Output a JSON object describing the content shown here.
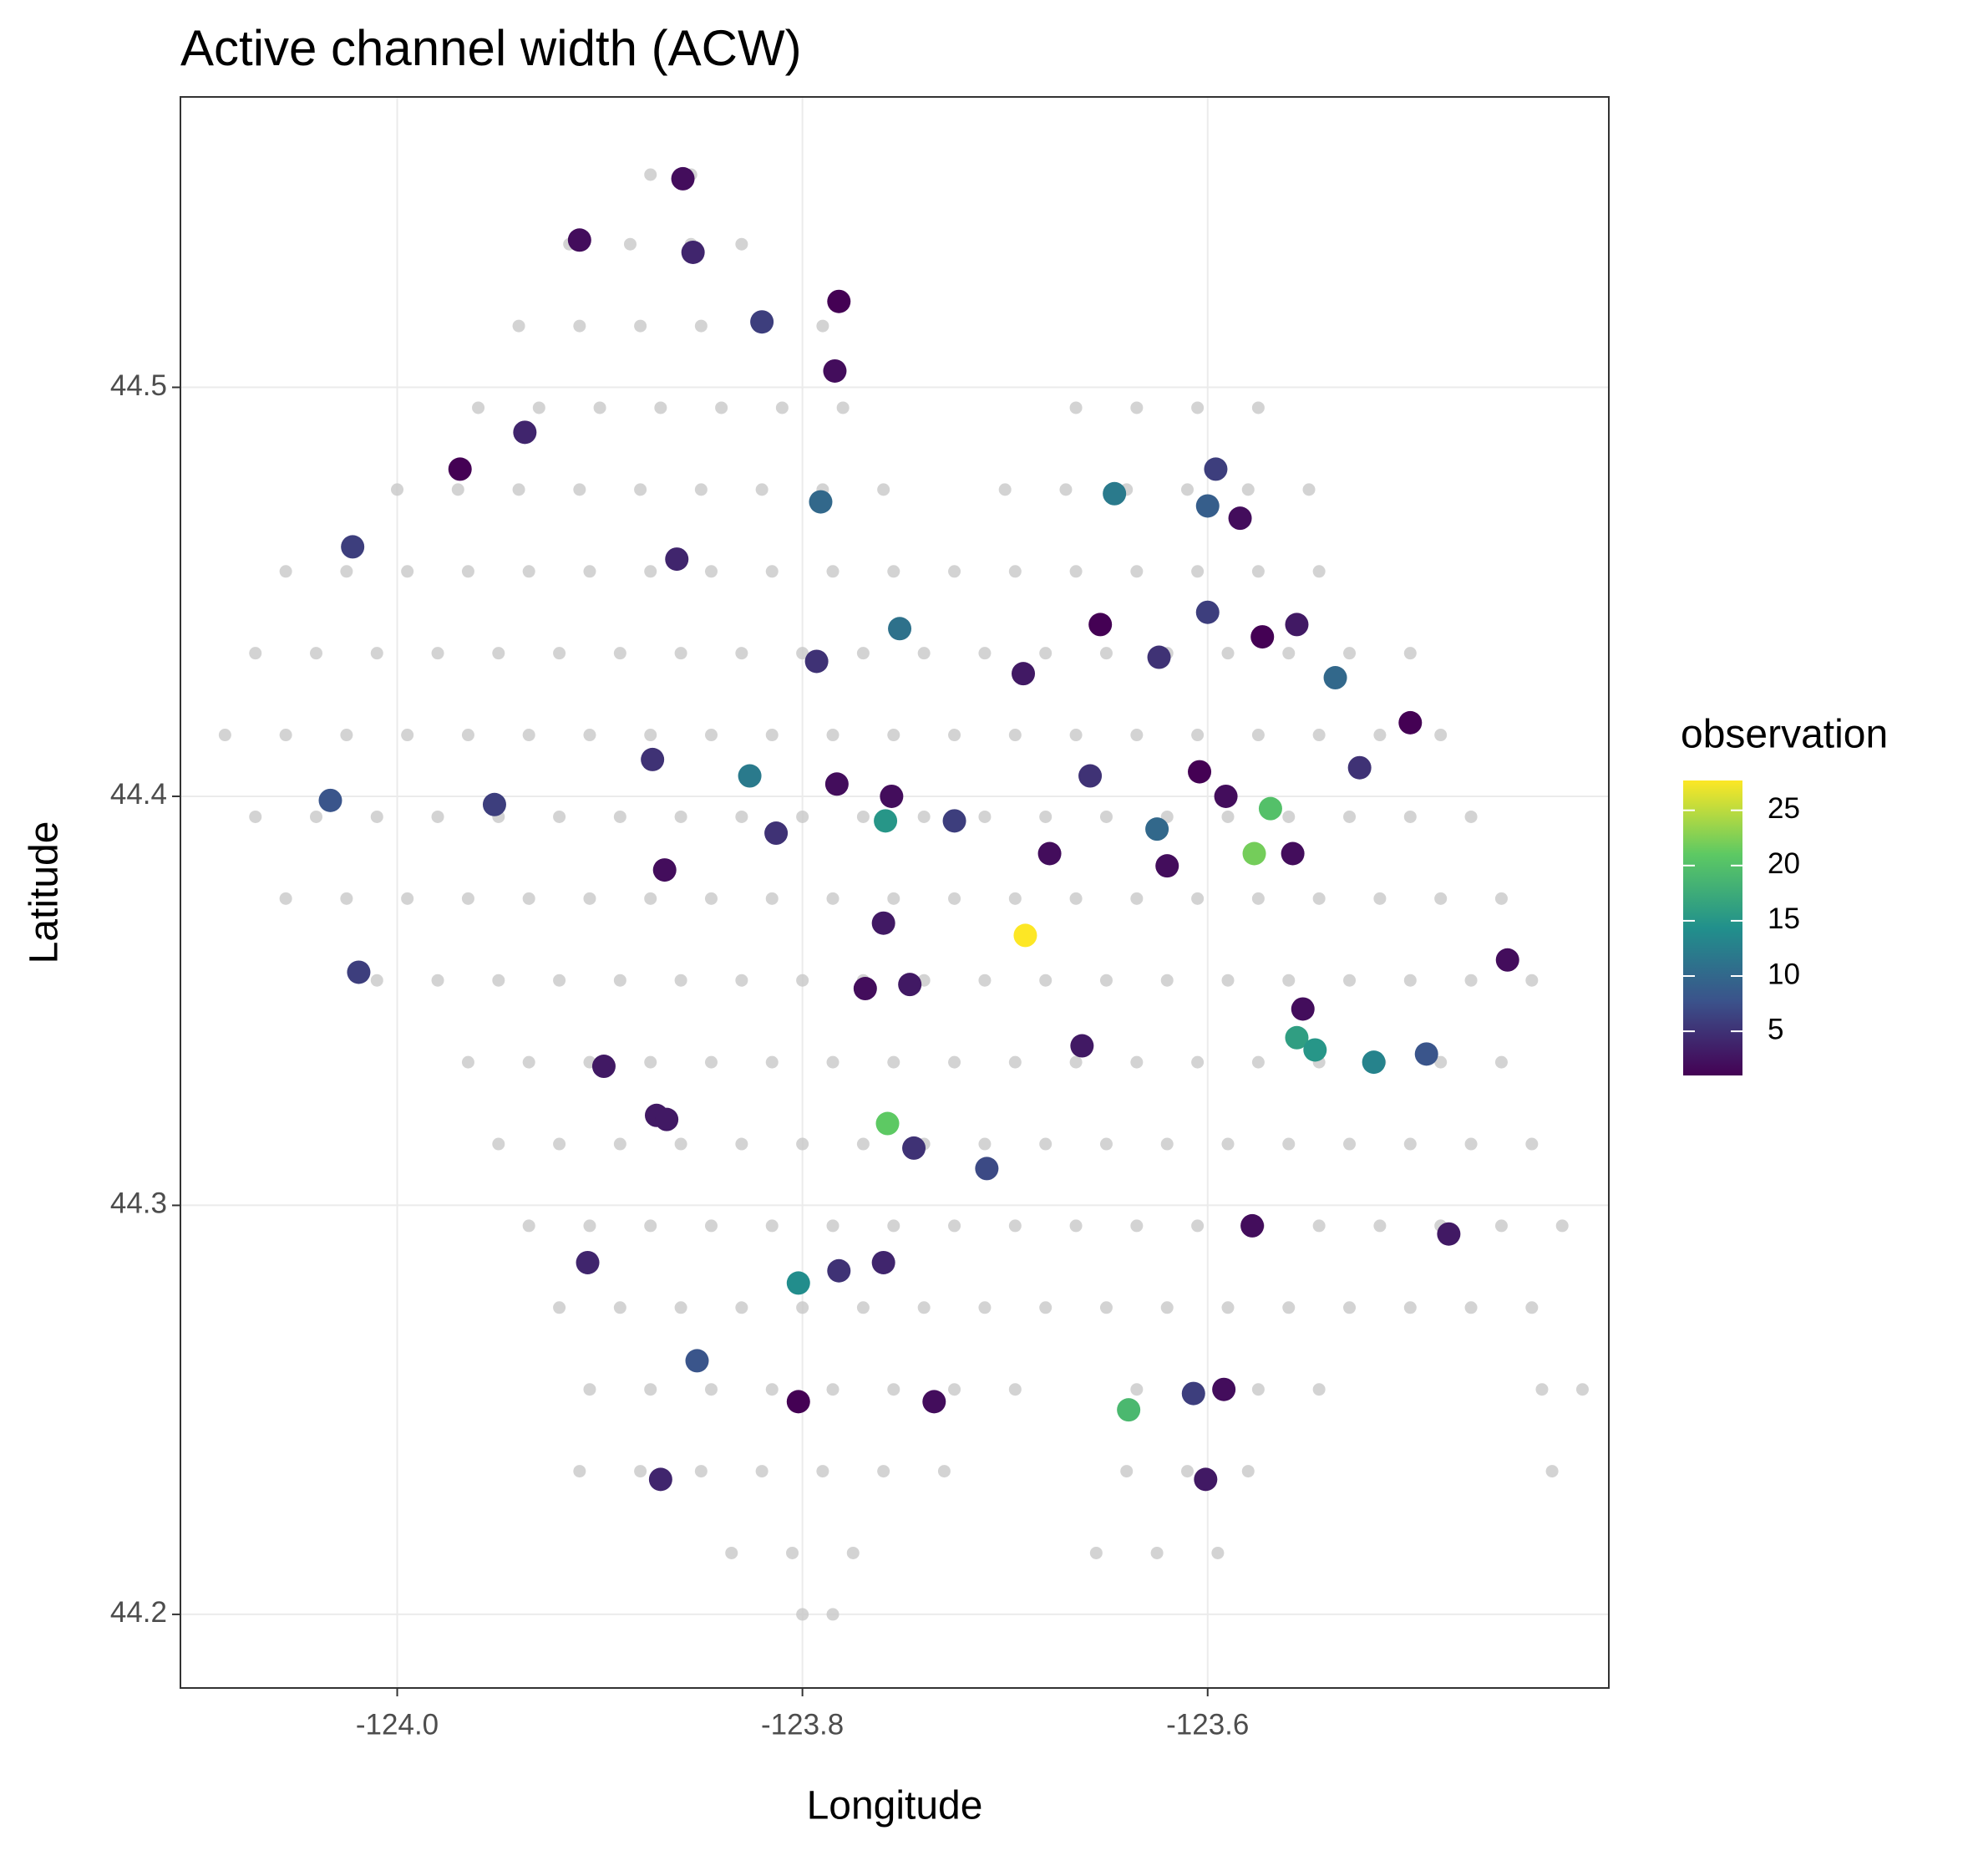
{
  "chart_data": {
    "type": "scatter",
    "title": "Active channel width (ACW)",
    "x_label": "Longitude",
    "y_label": "Latitude",
    "xlim": [
      -124.107,
      -123.402
    ],
    "ylim": [
      44.182,
      44.571
    ],
    "xticks": [
      {
        "value": -124,
        "label": "-124.0"
      },
      -123.8,
      -123.6
    ],
    "yticks": [
      44.2,
      44.3,
      44.4,
      44.5
    ],
    "grid": true,
    "background": {
      "color": "#c8c8c8",
      "x": [
        -123.875,
        -123.855,
        -123.915,
        -123.885,
        -123.855,
        -123.83,
        -123.94,
        -123.91,
        -123.88,
        -123.85,
        -123.82,
        -123.79,
        -123.96,
        -123.93,
        -123.9,
        -123.87,
        -123.84,
        -123.81,
        -123.78,
        -123.665,
        -123.635,
        -123.605,
        -123.575,
        -124.0,
        -123.97,
        -123.94,
        -123.91,
        -123.88,
        -123.85,
        -123.82,
        -123.79,
        -123.76,
        -123.7,
        -123.67,
        -123.64,
        -123.61,
        -123.58,
        -123.55,
        -124.055,
        -124.025,
        -123.995,
        -123.965,
        -123.935,
        -123.905,
        -123.875,
        -123.845,
        -123.815,
        -123.785,
        -123.755,
        -123.725,
        -123.695,
        -123.665,
        -123.635,
        -123.605,
        -123.575,
        -123.545,
        -124.07,
        -124.04,
        -124.01,
        -123.98,
        -123.95,
        -123.92,
        -123.89,
        -123.86,
        -123.83,
        -123.8,
        -123.77,
        -123.74,
        -123.71,
        -123.68,
        -123.65,
        -123.62,
        -123.59,
        -123.56,
        -123.53,
        -123.5,
        -124.085,
        -124.055,
        -124.025,
        -123.995,
        -123.965,
        -123.935,
        -123.905,
        -123.875,
        -123.845,
        -123.815,
        -123.785,
        -123.755,
        -123.725,
        -123.695,
        -123.665,
        -123.635,
        -123.605,
        -123.575,
        -123.545,
        -123.515,
        -123.485,
        -124.07,
        -124.04,
        -124.01,
        -123.98,
        -123.95,
        -123.92,
        -123.89,
        -123.86,
        -123.83,
        -123.8,
        -123.77,
        -123.74,
        -123.71,
        -123.68,
        -123.65,
        -123.62,
        -123.59,
        -123.56,
        -123.53,
        -123.5,
        -123.47,
        -124.055,
        -124.025,
        -123.995,
        -123.965,
        -123.935,
        -123.905,
        -123.875,
        -123.845,
        -123.815,
        -123.785,
        -123.755,
        -123.725,
        -123.695,
        -123.665,
        -123.635,
        -123.605,
        -123.575,
        -123.545,
        -123.515,
        -123.485,
        -123.455,
        -124.01,
        -123.98,
        -123.95,
        -123.92,
        -123.89,
        -123.86,
        -123.83,
        -123.8,
        -123.77,
        -123.74,
        -123.71,
        -123.68,
        -123.65,
        -123.62,
        -123.59,
        -123.56,
        -123.53,
        -123.5,
        -123.47,
        -123.44,
        -123.965,
        -123.935,
        -123.905,
        -123.875,
        -123.845,
        -123.815,
        -123.785,
        -123.755,
        -123.725,
        -123.695,
        -123.665,
        -123.635,
        -123.605,
        -123.575,
        -123.545,
        -123.515,
        -123.485,
        -123.455,
        -123.95,
        -123.92,
        -123.89,
        -123.86,
        -123.83,
        -123.8,
        -123.77,
        -123.74,
        -123.71,
        -123.68,
        -123.65,
        -123.62,
        -123.59,
        -123.56,
        -123.53,
        -123.5,
        -123.47,
        -123.44,
        -123.935,
        -123.905,
        -123.875,
        -123.845,
        -123.815,
        -123.785,
        -123.755,
        -123.725,
        -123.695,
        -123.665,
        -123.635,
        -123.605,
        -123.575,
        -123.545,
        -123.515,
        -123.485,
        -123.455,
        -123.425,
        -123.92,
        -123.89,
        -123.86,
        -123.83,
        -123.8,
        -123.77,
        -123.74,
        -123.71,
        -123.68,
        -123.65,
        -123.62,
        -123.59,
        -123.56,
        -123.53,
        -123.5,
        -123.47,
        -123.44,
        -123.905,
        -123.875,
        -123.845,
        -123.815,
        -123.785,
        -123.755,
        -123.725,
        -123.695,
        -123.635,
        -123.605,
        -123.575,
        -123.545,
        -123.435,
        -123.415,
        -123.91,
        -123.88,
        -123.85,
        -123.82,
        -123.79,
        -123.76,
        -123.73,
        -123.64,
        -123.61,
        -123.58,
        -123.43,
        -123.835,
        -123.805,
        -123.775,
        -123.655,
        -123.625,
        -123.595,
        -123.8,
        -123.785
      ],
      "y": [
        44.552,
        44.552,
        44.535,
        44.535,
        44.535,
        44.535,
        44.515,
        44.515,
        44.515,
        44.515,
        44.515,
        44.515,
        44.495,
        44.495,
        44.495,
        44.495,
        44.495,
        44.495,
        44.495,
        44.495,
        44.495,
        44.495,
        44.495,
        44.475,
        44.475,
        44.475,
        44.475,
        44.475,
        44.475,
        44.475,
        44.475,
        44.475,
        44.475,
        44.475,
        44.475,
        44.475,
        44.475,
        44.475,
        44.455,
        44.455,
        44.455,
        44.455,
        44.455,
        44.455,
        44.455,
        44.455,
        44.455,
        44.455,
        44.455,
        44.455,
        44.455,
        44.455,
        44.455,
        44.455,
        44.455,
        44.455,
        44.435,
        44.435,
        44.435,
        44.435,
        44.435,
        44.435,
        44.435,
        44.435,
        44.435,
        44.435,
        44.435,
        44.435,
        44.435,
        44.435,
        44.435,
        44.435,
        44.435,
        44.435,
        44.435,
        44.435,
        44.415,
        44.415,
        44.415,
        44.415,
        44.415,
        44.415,
        44.415,
        44.415,
        44.415,
        44.415,
        44.415,
        44.415,
        44.415,
        44.415,
        44.415,
        44.415,
        44.415,
        44.415,
        44.415,
        44.415,
        44.415,
        44.395,
        44.395,
        44.395,
        44.395,
        44.395,
        44.395,
        44.395,
        44.395,
        44.395,
        44.395,
        44.395,
        44.395,
        44.395,
        44.395,
        44.395,
        44.395,
        44.395,
        44.395,
        44.395,
        44.395,
        44.395,
        44.375,
        44.375,
        44.375,
        44.375,
        44.375,
        44.375,
        44.375,
        44.375,
        44.375,
        44.375,
        44.375,
        44.375,
        44.375,
        44.375,
        44.375,
        44.375,
        44.375,
        44.375,
        44.375,
        44.375,
        44.375,
        44.355,
        44.355,
        44.355,
        44.355,
        44.355,
        44.355,
        44.355,
        44.355,
        44.355,
        44.355,
        44.355,
        44.355,
        44.355,
        44.355,
        44.355,
        44.355,
        44.355,
        44.355,
        44.355,
        44.355,
        44.335,
        44.335,
        44.335,
        44.335,
        44.335,
        44.335,
        44.335,
        44.335,
        44.335,
        44.335,
        44.335,
        44.335,
        44.335,
        44.335,
        44.335,
        44.335,
        44.335,
        44.335,
        44.315,
        44.315,
        44.315,
        44.315,
        44.315,
        44.315,
        44.315,
        44.315,
        44.315,
        44.315,
        44.315,
        44.315,
        44.315,
        44.315,
        44.315,
        44.315,
        44.315,
        44.315,
        44.295,
        44.295,
        44.295,
        44.295,
        44.295,
        44.295,
        44.295,
        44.295,
        44.295,
        44.295,
        44.295,
        44.295,
        44.295,
        44.295,
        44.295,
        44.295,
        44.295,
        44.295,
        44.275,
        44.275,
        44.275,
        44.275,
        44.275,
        44.275,
        44.275,
        44.275,
        44.275,
        44.275,
        44.275,
        44.275,
        44.275,
        44.275,
        44.275,
        44.275,
        44.275,
        44.255,
        44.255,
        44.255,
        44.255,
        44.255,
        44.255,
        44.255,
        44.255,
        44.255,
        44.255,
        44.255,
        44.255,
        44.255,
        44.255,
        44.235,
        44.235,
        44.235,
        44.235,
        44.235,
        44.235,
        44.235,
        44.235,
        44.235,
        44.235,
        44.235,
        44.215,
        44.215,
        44.215,
        44.215,
        44.215,
        44.215,
        44.2,
        44.2
      ]
    },
    "observations": {
      "x": [
        -123.859,
        -123.91,
        -123.854,
        -123.782,
        -123.82,
        -123.784,
        -123.937,
        -123.969,
        -123.791,
        -123.646,
        -123.596,
        -123.6,
        -123.584,
        -124.022,
        -123.862,
        -123.752,
        -123.653,
        -123.6,
        -123.573,
        -123.556,
        -123.793,
        -123.691,
        -123.624,
        -123.537,
        -123.5,
        -123.525,
        -123.874,
        -123.826,
        -123.783,
        -123.756,
        -123.658,
        -123.604,
        -123.591,
        -124.033,
        -123.952,
        -123.759,
        -123.725,
        -123.813,
        -123.625,
        -123.569,
        -123.577,
        -123.558,
        -123.678,
        -123.62,
        -123.868,
        -123.76,
        -123.69,
        -124.019,
        -123.769,
        -123.747,
        -123.452,
        -123.553,
        -123.556,
        -123.547,
        -123.518,
        -123.492,
        -123.662,
        -123.898,
        -123.872,
        -123.867,
        -123.758,
        -123.745,
        -123.709,
        -123.578,
        -123.481,
        -123.906,
        -123.782,
        -123.76,
        -123.802,
        -123.852,
        -123.802,
        -123.735,
        -123.639,
        -123.607,
        -123.592,
        -123.87,
        -123.601
      ],
      "y": [
        44.551,
        44.536,
        44.533,
        44.521,
        44.516,
        44.504,
        44.489,
        44.48,
        44.472,
        44.474,
        44.48,
        44.471,
        44.468,
        44.461,
        44.458,
        44.441,
        44.442,
        44.445,
        44.439,
        44.442,
        44.433,
        44.43,
        44.434,
        44.429,
        44.418,
        44.407,
        44.409,
        44.405,
        44.403,
        44.4,
        44.405,
        44.406,
        44.4,
        44.399,
        44.398,
        44.394,
        44.394,
        44.391,
        44.392,
        44.397,
        44.386,
        44.386,
        44.386,
        44.383,
        44.382,
        44.369,
        44.366,
        44.357,
        44.353,
        44.354,
        44.36,
        44.348,
        44.341,
        44.338,
        44.335,
        44.337,
        44.339,
        44.334,
        44.322,
        44.321,
        44.32,
        44.314,
        44.309,
        44.295,
        44.293,
        44.286,
        44.284,
        44.286,
        44.281,
        44.262,
        44.252,
        44.252,
        44.25,
        44.254,
        44.255,
        44.233,
        44.233
      ],
      "values": [
        2,
        2,
        4,
        1,
        6,
        2,
        4,
        1,
        10,
        12,
        6,
        9,
        2,
        6,
        4,
        11,
        1,
        6,
        1,
        3,
        5,
        3,
        5,
        10,
        1,
        5,
        5,
        12,
        2,
        2,
        5,
        1,
        2,
        8,
        6,
        15,
        6,
        5,
        10,
        20,
        22,
        2,
        2,
        2,
        2,
        3,
        27.7,
        6,
        2,
        3,
        2,
        2,
        16,
        15,
        13,
        8,
        3,
        3,
        3,
        3,
        21,
        5,
        7,
        2,
        3,
        4,
        5,
        4,
        14,
        8,
        1,
        2,
        19,
        6,
        2,
        4,
        3
      ]
    },
    "color_label": "observation",
    "colorlim": [
      1,
      27.7
    ],
    "colorticks": [
      5,
      10,
      15,
      20,
      25
    ],
    "colormap": [
      "#440154",
      "#3b528b",
      "#21908c",
      "#5dc963",
      "#fde725"
    ]
  }
}
